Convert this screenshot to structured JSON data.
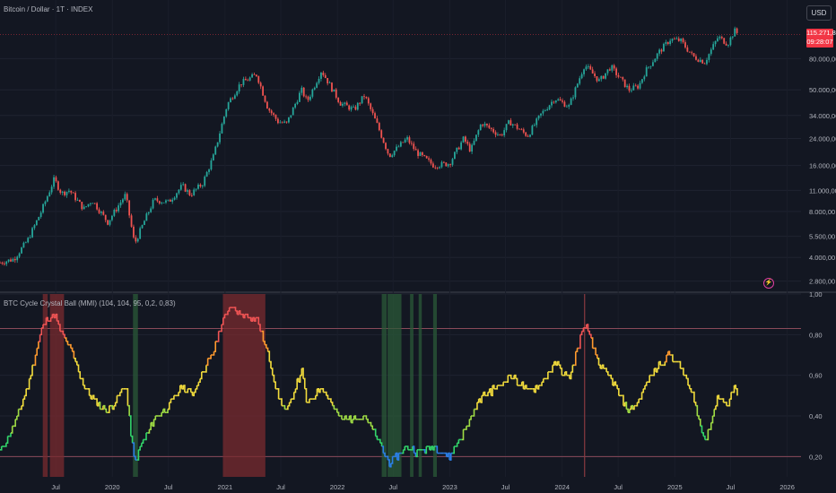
{
  "header": {
    "main_title": "Bitcoin / Dollar · 1T · INDEX",
    "indicator_title": "BTC Cycle Crystal Ball (MMI) (104, 104, 95, 0,2, 0,83)"
  },
  "currency_button": "USD",
  "last_price": {
    "price": "115.271,88",
    "countdown": "09:28:07",
    "color": "#f23645"
  },
  "alert_icon": "lightning-icon",
  "colors": {
    "background": "#131722",
    "bull_candle": "#26a69a",
    "bear_candle": "#ef5350",
    "red_zone": "#7a2b2f",
    "green_zone": "#2b5a38",
    "threshold_line": "#8a4a5a"
  },
  "chart_data": [
    {
      "type": "candlestick",
      "name": "price-chart",
      "title": "Bitcoin / Dollar · 1T · INDEX",
      "scale": "log",
      "ylim": [
        2500,
        140000
      ],
      "y_ticks": [
        {
          "value": 80000,
          "label": "80.000,00"
        },
        {
          "value": 50000,
          "label": "50.000,00"
        },
        {
          "value": 34000,
          "label": "34.000,00"
        },
        {
          "value": 24000,
          "label": "24.000,00"
        },
        {
          "value": 16000,
          "label": "16.000,00"
        },
        {
          "value": 11000,
          "label": "11.000,00"
        },
        {
          "value": 8000,
          "label": "8.000,00"
        },
        {
          "value": 5500,
          "label": "5.500,00"
        },
        {
          "value": 4000,
          "label": "4.000,00"
        },
        {
          "value": 2800,
          "label": "2.800,00"
        }
      ],
      "price_path": [
        [
          "2019-01-01",
          3700
        ],
        [
          "2019-02-15",
          3900
        ],
        [
          "2019-04-01",
          5200
        ],
        [
          "2019-05-15",
          8000
        ],
        [
          "2019-06-26",
          13000
        ],
        [
          "2019-07-20",
          10500
        ],
        [
          "2019-08-15",
          11000
        ],
        [
          "2019-09-30",
          8300
        ],
        [
          "2019-10-27",
          9500
        ],
        [
          "2019-12-17",
          6800
        ],
        [
          "2020-01-20",
          8700
        ],
        [
          "2020-02-13",
          10300
        ],
        [
          "2020-03-13",
          4900
        ],
        [
          "2020-04-15",
          7000
        ],
        [
          "2020-05-15",
          9500
        ],
        [
          "2020-07-01",
          9200
        ],
        [
          "2020-08-15",
          11800
        ],
        [
          "2020-09-10",
          10300
        ],
        [
          "2020-10-20",
          12200
        ],
        [
          "2020-11-25",
          18500
        ],
        [
          "2021-01-08",
          40000
        ],
        [
          "2021-02-20",
          55000
        ],
        [
          "2021-04-14",
          63000
        ],
        [
          "2021-05-20",
          38000
        ],
        [
          "2021-06-22",
          31000
        ],
        [
          "2021-07-20",
          30000
        ],
        [
          "2021-09-06",
          50000
        ],
        [
          "2021-09-25",
          42000
        ],
        [
          "2021-11-10",
          67000
        ],
        [
          "2022-01-10",
          41000
        ],
        [
          "2022-02-24",
          37000
        ],
        [
          "2022-03-30",
          46000
        ],
        [
          "2022-05-12",
          29000
        ],
        [
          "2022-06-18",
          18500
        ],
        [
          "2022-08-15",
          24000
        ],
        [
          "2022-09-15",
          19500
        ],
        [
          "2022-11-10",
          16000
        ],
        [
          "2022-12-31",
          16500
        ],
        [
          "2023-02-15",
          24000
        ],
        [
          "2023-03-10",
          20000
        ],
        [
          "2023-04-14",
          30500
        ],
        [
          "2023-06-15",
          25000
        ],
        [
          "2023-07-14",
          31000
        ],
        [
          "2023-09-11",
          25000
        ],
        [
          "2023-10-24",
          34500
        ],
        [
          "2023-12-08",
          44000
        ],
        [
          "2024-01-23",
          39000
        ],
        [
          "2024-03-14",
          73000
        ],
        [
          "2024-05-01",
          57000
        ],
        [
          "2024-06-07",
          71000
        ],
        [
          "2024-08-05",
          50000
        ],
        [
          "2024-09-06",
          53000
        ],
        [
          "2024-09-27",
          66000
        ],
        [
          "2024-11-12",
          89000
        ],
        [
          "2024-12-17",
          107000
        ],
        [
          "2025-01-20",
          105000
        ],
        [
          "2025-02-28",
          83000
        ],
        [
          "2025-04-08",
          76000
        ],
        [
          "2025-05-22",
          111000
        ],
        [
          "2025-06-22",
          100000
        ],
        [
          "2025-07-14",
          122000
        ],
        [
          "2025-07-27",
          115271
        ]
      ],
      "last_value": 115271.88
    },
    {
      "type": "line",
      "name": "cycle-indicator",
      "title": "BTC Cycle Crystal Ball (MMI) (104, 104, 95, 0,2, 0,83)",
      "ylim": [
        0.1,
        1.0
      ],
      "y_ticks": [
        {
          "value": 1.0,
          "label": "1,00"
        },
        {
          "value": 0.8,
          "label": "0,80"
        },
        {
          "value": 0.6,
          "label": "0,60"
        },
        {
          "value": 0.4,
          "label": "0,40"
        },
        {
          "value": 0.2,
          "label": "0,20"
        }
      ],
      "thresholds": [
        0.2,
        0.83
      ],
      "series_points": [
        [
          "2019-01-01",
          0.23
        ],
        [
          "2019-02-15",
          0.35
        ],
        [
          "2019-04-01",
          0.55
        ],
        [
          "2019-05-15",
          0.82
        ],
        [
          "2019-06-01",
          0.88
        ],
        [
          "2019-06-26",
          0.9
        ],
        [
          "2019-07-15",
          0.82
        ],
        [
          "2019-08-15",
          0.74
        ],
        [
          "2019-09-30",
          0.55
        ],
        [
          "2019-11-01",
          0.48
        ],
        [
          "2019-12-17",
          0.42
        ],
        [
          "2020-01-20",
          0.5
        ],
        [
          "2020-02-13",
          0.55
        ],
        [
          "2020-03-13",
          0.16
        ],
        [
          "2020-04-01",
          0.25
        ],
        [
          "2020-05-15",
          0.38
        ],
        [
          "2020-07-01",
          0.45
        ],
        [
          "2020-08-15",
          0.55
        ],
        [
          "2020-09-15",
          0.5
        ],
        [
          "2020-10-20",
          0.62
        ],
        [
          "2020-11-25",
          0.72
        ],
        [
          "2020-12-20",
          0.85
        ],
        [
          "2021-01-08",
          0.93
        ],
        [
          "2021-02-20",
          0.9
        ],
        [
          "2021-04-14",
          0.88
        ],
        [
          "2021-05-20",
          0.7
        ],
        [
          "2021-06-22",
          0.5
        ],
        [
          "2021-07-20",
          0.42
        ],
        [
          "2021-09-06",
          0.62
        ],
        [
          "2021-09-25",
          0.45
        ],
        [
          "2021-11-10",
          0.55
        ],
        [
          "2022-01-10",
          0.38
        ],
        [
          "2022-03-30",
          0.4
        ],
        [
          "2022-05-12",
          0.28
        ],
        [
          "2022-06-18",
          0.16
        ],
        [
          "2022-08-15",
          0.25
        ],
        [
          "2022-09-15",
          0.22
        ],
        [
          "2022-11-10",
          0.25
        ],
        [
          "2022-12-31",
          0.2
        ],
        [
          "2023-02-15",
          0.32
        ],
        [
          "2023-04-14",
          0.5
        ],
        [
          "2023-06-15",
          0.55
        ],
        [
          "2023-07-14",
          0.6
        ],
        [
          "2023-09-11",
          0.52
        ],
        [
          "2023-10-24",
          0.56
        ],
        [
          "2023-12-08",
          0.66
        ],
        [
          "2024-01-23",
          0.58
        ],
        [
          "2024-03-14",
          0.86
        ],
        [
          "2024-05-01",
          0.65
        ],
        [
          "2024-06-07",
          0.58
        ],
        [
          "2024-08-05",
          0.42
        ],
        [
          "2024-09-06",
          0.48
        ],
        [
          "2024-09-27",
          0.55
        ],
        [
          "2024-11-12",
          0.66
        ],
        [
          "2024-12-17",
          0.7
        ],
        [
          "2025-01-20",
          0.64
        ],
        [
          "2025-02-28",
          0.5
        ],
        [
          "2025-04-08",
          0.27
        ],
        [
          "2025-05-22",
          0.5
        ],
        [
          "2025-06-22",
          0.45
        ],
        [
          "2025-07-14",
          0.55
        ],
        [
          "2025-07-27",
          0.49
        ]
      ],
      "highlight_zones": [
        {
          "kind": "red",
          "start": "2019-05-20",
          "end": "2019-06-05"
        },
        {
          "kind": "red",
          "start": "2019-06-12",
          "end": "2019-07-28"
        },
        {
          "kind": "green",
          "start": "2020-03-08",
          "end": "2020-03-24"
        },
        {
          "kind": "red",
          "start": "2020-12-25",
          "end": "2021-05-12"
        },
        {
          "kind": "green",
          "start": "2022-05-25",
          "end": "2022-06-10"
        },
        {
          "kind": "green",
          "start": "2022-06-13",
          "end": "2022-07-28"
        },
        {
          "kind": "green",
          "start": "2022-08-25",
          "end": "2022-09-05"
        },
        {
          "kind": "green",
          "start": "2022-09-22",
          "end": "2022-10-02"
        },
        {
          "kind": "green",
          "start": "2022-11-08",
          "end": "2022-11-20"
        }
      ],
      "marker_date": "2024-03-14"
    }
  ],
  "x_axis": {
    "range": [
      "2019-01-01",
      "2026-02-15"
    ],
    "ticks": [
      {
        "date": "2019-07-01",
        "label": "Jul"
      },
      {
        "date": "2020-01-01",
        "label": "2020"
      },
      {
        "date": "2020-07-01",
        "label": "Jul"
      },
      {
        "date": "2021-01-01",
        "label": "2021"
      },
      {
        "date": "2021-07-01",
        "label": "Jul"
      },
      {
        "date": "2022-01-01",
        "label": "2022"
      },
      {
        "date": "2022-07-01",
        "label": "Jul"
      },
      {
        "date": "2023-01-01",
        "label": "2023"
      },
      {
        "date": "2023-07-01",
        "label": "Jul"
      },
      {
        "date": "2024-01-01",
        "label": "2024"
      },
      {
        "date": "2024-07-01",
        "label": "Jul"
      },
      {
        "date": "2025-01-01",
        "label": "2025"
      },
      {
        "date": "2025-07-01",
        "label": "Jul"
      },
      {
        "date": "2026-01-01",
        "label": "2026"
      }
    ]
  }
}
